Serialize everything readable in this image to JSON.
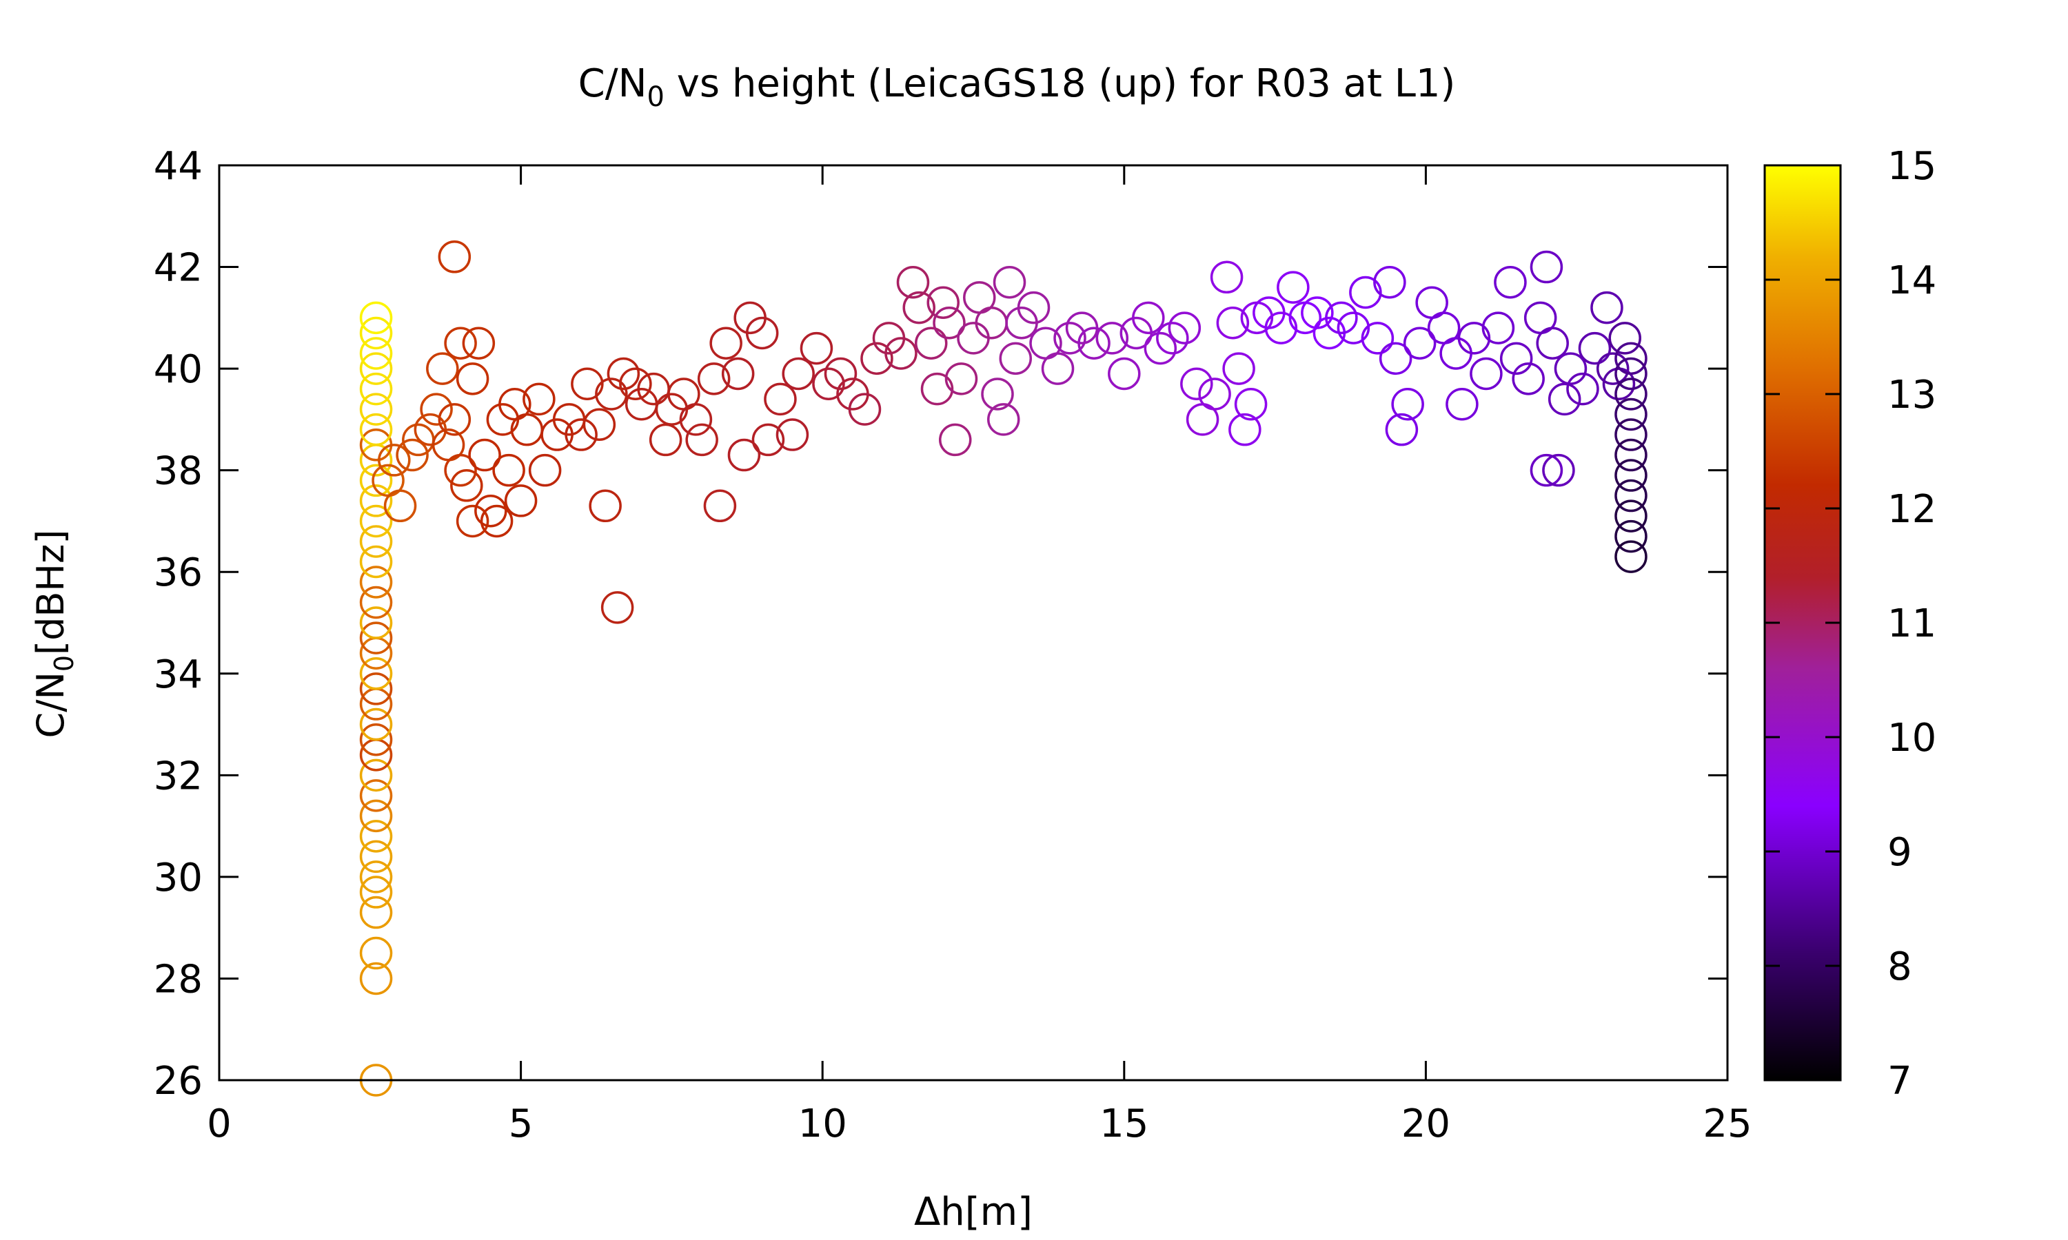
{
  "chart_data": {
    "type": "scatter",
    "title": {
      "prefix": "C/N",
      "subscript": "0",
      "suffix": " vs height (LeicaGS18 (up) for R03 at L1)"
    },
    "xlabel": "Δh[m]",
    "ylabel": {
      "prefix": "C/N",
      "subscript": "0",
      "suffix": "[dBHz]"
    },
    "xlim": [
      0,
      25
    ],
    "ylim": [
      26,
      44
    ],
    "xticks": [
      "0",
      "5",
      "10",
      "15",
      "20",
      "25"
    ],
    "yticks": [
      "26",
      "28",
      "30",
      "32",
      "34",
      "36",
      "38",
      "40",
      "42",
      "44"
    ],
    "colorbar": {
      "range": [
        7,
        15
      ],
      "ticks": [
        "7",
        "8",
        "9",
        "10",
        "11",
        "12",
        "13",
        "14",
        "15"
      ],
      "palette": "gnuplot (black-purple-red-orange-yellow)"
    },
    "marker": "open-circle",
    "points_x_y_color": [
      [
        2.6,
        26.0,
        13.8
      ],
      [
        2.6,
        28.0,
        13.8
      ],
      [
        2.6,
        28.5,
        13.9
      ],
      [
        2.6,
        29.3,
        13.9
      ],
      [
        2.6,
        29.7,
        14.0
      ],
      [
        2.6,
        30.0,
        14.0
      ],
      [
        2.6,
        30.4,
        14.0
      ],
      [
        2.6,
        30.8,
        14.1
      ],
      [
        2.6,
        31.2,
        13.6
      ],
      [
        2.6,
        31.6,
        13.2
      ],
      [
        2.6,
        32.0,
        14.1
      ],
      [
        2.6,
        32.4,
        12.6
      ],
      [
        2.6,
        32.7,
        12.8
      ],
      [
        2.6,
        33.0,
        14.1
      ],
      [
        2.6,
        33.4,
        13.0
      ],
      [
        2.6,
        33.7,
        12.7
      ],
      [
        2.6,
        34.0,
        14.2
      ],
      [
        2.6,
        34.4,
        13.3
      ],
      [
        2.6,
        34.7,
        12.9
      ],
      [
        2.6,
        35.0,
        14.2
      ],
      [
        2.6,
        35.4,
        13.1
      ],
      [
        2.6,
        35.8,
        13.4
      ],
      [
        2.6,
        36.2,
        14.3
      ],
      [
        2.6,
        36.6,
        14.3
      ],
      [
        2.6,
        37.0,
        14.4
      ],
      [
        2.6,
        37.4,
        14.4
      ],
      [
        2.6,
        37.8,
        14.5
      ],
      [
        2.6,
        38.2,
        14.5
      ],
      [
        2.6,
        38.5,
        13.0
      ],
      [
        2.6,
        38.8,
        14.6
      ],
      [
        2.6,
        39.2,
        14.6
      ],
      [
        2.6,
        39.6,
        14.7
      ],
      [
        2.6,
        40.0,
        14.7
      ],
      [
        2.6,
        40.3,
        14.8
      ],
      [
        2.6,
        40.7,
        14.8
      ],
      [
        2.6,
        41.0,
        14.9
      ],
      [
        2.8,
        37.8,
        12.9
      ],
      [
        2.9,
        38.2,
        12.8
      ],
      [
        3.0,
        37.3,
        12.8
      ],
      [
        3.2,
        38.3,
        12.7
      ],
      [
        3.3,
        38.6,
        12.7
      ],
      [
        3.5,
        38.8,
        12.6
      ],
      [
        3.6,
        39.2,
        12.6
      ],
      [
        3.7,
        40.0,
        12.5
      ],
      [
        3.8,
        38.5,
        12.5
      ],
      [
        3.9,
        42.2,
        12.4
      ],
      [
        3.9,
        39.0,
        12.4
      ],
      [
        4.0,
        40.5,
        12.4
      ],
      [
        4.0,
        38.0,
        12.4
      ],
      [
        4.1,
        37.7,
        12.3
      ],
      [
        4.2,
        39.8,
        12.3
      ],
      [
        4.2,
        37.0,
        12.3
      ],
      [
        4.3,
        40.5,
        12.3
      ],
      [
        4.4,
        38.3,
        12.2
      ],
      [
        4.5,
        37.2,
        12.2
      ],
      [
        4.6,
        37.0,
        12.2
      ],
      [
        4.7,
        39.0,
        12.2
      ],
      [
        4.8,
        38.0,
        12.2
      ],
      [
        4.9,
        39.3,
        12.1
      ],
      [
        5.0,
        37.4,
        12.1
      ],
      [
        5.1,
        38.8,
        12.1
      ],
      [
        5.3,
        39.4,
        12.1
      ],
      [
        5.4,
        38.0,
        12.0
      ],
      [
        5.6,
        38.7,
        12.0
      ],
      [
        5.8,
        39.0,
        12.0
      ],
      [
        6.0,
        38.7,
        11.9
      ],
      [
        6.1,
        39.7,
        11.9
      ],
      [
        6.3,
        38.9,
        11.9
      ],
      [
        6.4,
        37.3,
        11.9
      ],
      [
        6.5,
        39.5,
        11.8
      ],
      [
        6.6,
        35.3,
        11.8
      ],
      [
        6.7,
        39.9,
        11.8
      ],
      [
        6.9,
        39.7,
        11.8
      ],
      [
        7.0,
        39.3,
        11.7
      ],
      [
        7.2,
        39.6,
        11.7
      ],
      [
        7.4,
        38.6,
        11.7
      ],
      [
        7.5,
        39.2,
        11.7
      ],
      [
        7.7,
        39.5,
        11.7
      ],
      [
        7.9,
        39.0,
        11.6
      ],
      [
        8.0,
        38.6,
        11.6
      ],
      [
        8.2,
        39.8,
        11.6
      ],
      [
        8.3,
        37.3,
        11.6
      ],
      [
        8.4,
        40.5,
        11.6
      ],
      [
        8.6,
        39.9,
        11.5
      ],
      [
        8.7,
        38.3,
        11.5
      ],
      [
        8.8,
        41.0,
        11.5
      ],
      [
        9.0,
        40.7,
        11.5
      ],
      [
        9.1,
        38.6,
        11.5
      ],
      [
        9.3,
        39.4,
        11.5
      ],
      [
        9.5,
        38.7,
        11.4
      ],
      [
        9.6,
        39.9,
        11.4
      ],
      [
        9.9,
        40.4,
        11.4
      ],
      [
        10.1,
        39.7,
        11.3
      ],
      [
        10.3,
        39.9,
        11.3
      ],
      [
        10.5,
        39.5,
        11.3
      ],
      [
        10.7,
        39.2,
        11.2
      ],
      [
        10.9,
        40.2,
        11.2
      ],
      [
        11.1,
        40.6,
        11.1
      ],
      [
        11.3,
        40.3,
        11.1
      ],
      [
        11.5,
        41.7,
        11.0
      ],
      [
        11.6,
        41.2,
        11.0
      ],
      [
        11.8,
        40.5,
        10.9
      ],
      [
        11.9,
        39.6,
        10.9
      ],
      [
        12.0,
        41.3,
        10.9
      ],
      [
        12.1,
        40.9,
        10.8
      ],
      [
        12.2,
        38.6,
        10.8
      ],
      [
        12.3,
        39.8,
        10.8
      ],
      [
        12.5,
        40.6,
        10.7
      ],
      [
        12.6,
        41.4,
        10.7
      ],
      [
        12.8,
        40.9,
        10.7
      ],
      [
        12.9,
        39.5,
        10.6
      ],
      [
        13.0,
        39.0,
        10.6
      ],
      [
        13.1,
        41.7,
        10.6
      ],
      [
        13.2,
        40.2,
        10.6
      ],
      [
        13.3,
        40.9,
        10.5
      ],
      [
        13.5,
        41.2,
        10.5
      ],
      [
        13.7,
        40.5,
        10.4
      ],
      [
        13.9,
        40.0,
        10.4
      ],
      [
        14.1,
        40.6,
        10.3
      ],
      [
        14.3,
        40.8,
        10.3
      ],
      [
        14.5,
        40.5,
        10.2
      ],
      [
        14.8,
        40.6,
        10.2
      ],
      [
        15.0,
        39.9,
        10.1
      ],
      [
        15.2,
        40.7,
        10.1
      ],
      [
        15.4,
        41.0,
        10.0
      ],
      [
        15.6,
        40.4,
        10.0
      ],
      [
        15.8,
        40.6,
        9.9
      ],
      [
        16.0,
        40.8,
        9.9
      ],
      [
        16.2,
        39.7,
        9.8
      ],
      [
        16.3,
        39.0,
        9.8
      ],
      [
        16.5,
        39.5,
        9.8
      ],
      [
        16.7,
        41.8,
        9.7
      ],
      [
        16.8,
        40.9,
        9.7
      ],
      [
        16.9,
        40.0,
        9.7
      ],
      [
        17.0,
        38.8,
        9.6
      ],
      [
        17.1,
        39.3,
        9.6
      ],
      [
        17.2,
        41.0,
        9.6
      ],
      [
        17.4,
        41.1,
        9.5
      ],
      [
        17.6,
        40.8,
        9.5
      ],
      [
        17.8,
        41.6,
        9.5
      ],
      [
        18.0,
        41.0,
        9.4
      ],
      [
        18.2,
        41.1,
        9.4
      ],
      [
        18.4,
        40.7,
        9.4
      ],
      [
        18.6,
        41.0,
        9.3
      ],
      [
        18.8,
        40.8,
        9.3
      ],
      [
        19.0,
        41.5,
        9.3
      ],
      [
        19.2,
        40.6,
        9.3
      ],
      [
        19.4,
        41.7,
        9.2
      ],
      [
        19.5,
        40.2,
        9.2
      ],
      [
        19.6,
        38.8,
        9.2
      ],
      [
        19.7,
        39.3,
        9.2
      ],
      [
        19.9,
        40.5,
        9.1
      ],
      [
        20.1,
        41.3,
        9.1
      ],
      [
        20.3,
        40.8,
        9.1
      ],
      [
        20.5,
        40.3,
        9.1
      ],
      [
        20.6,
        39.3,
        9.1
      ],
      [
        20.8,
        40.6,
        9.0
      ],
      [
        21.0,
        39.9,
        9.0
      ],
      [
        21.2,
        40.8,
        9.0
      ],
      [
        21.4,
        41.7,
        9.0
      ],
      [
        21.5,
        40.2,
        8.9
      ],
      [
        21.7,
        39.8,
        8.9
      ],
      [
        21.9,
        41.0,
        8.9
      ],
      [
        22.0,
        42.0,
        8.9
      ],
      [
        22.0,
        38.0,
        8.9
      ],
      [
        22.1,
        40.5,
        8.8
      ],
      [
        22.2,
        38.0,
        8.8
      ],
      [
        22.3,
        39.4,
        8.8
      ],
      [
        22.4,
        40.0,
        8.8
      ],
      [
        22.6,
        39.6,
        8.8
      ],
      [
        22.8,
        40.4,
        8.7
      ],
      [
        23.0,
        41.2,
        8.7
      ],
      [
        23.1,
        40.0,
        8.6
      ],
      [
        23.2,
        39.7,
        8.6
      ],
      [
        23.3,
        40.6,
        8.5
      ],
      [
        23.4,
        40.2,
        8.4
      ],
      [
        23.4,
        39.9,
        8.3
      ],
      [
        23.4,
        39.5,
        8.2
      ],
      [
        23.4,
        39.1,
        8.1
      ],
      [
        23.4,
        38.7,
        8.0
      ],
      [
        23.4,
        38.3,
        7.9
      ],
      [
        23.4,
        37.9,
        7.8
      ],
      [
        23.4,
        37.5,
        7.8
      ],
      [
        23.4,
        37.1,
        7.7
      ],
      [
        23.4,
        36.7,
        7.7
      ],
      [
        23.4,
        36.3,
        7.6
      ]
    ]
  }
}
